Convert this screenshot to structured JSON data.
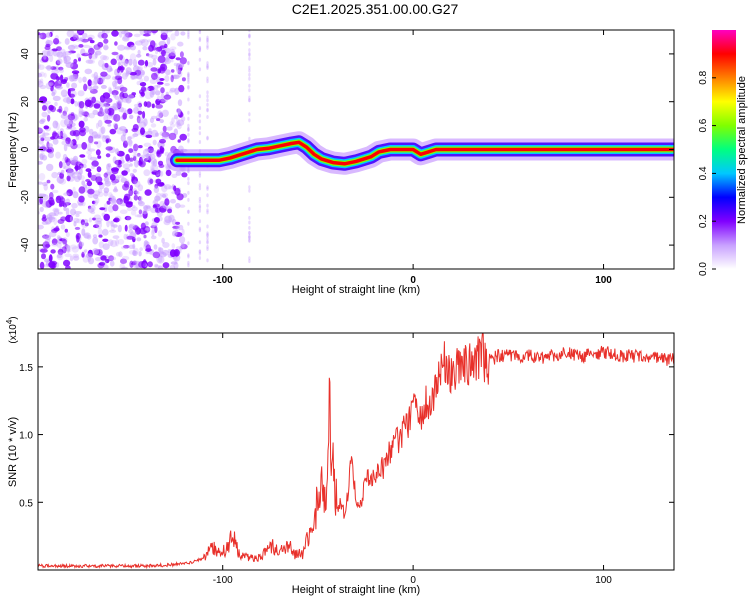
{
  "figure": {
    "title": "C2E1.2025.351.00.00.G27"
  },
  "chart_data": [
    {
      "type": "heatmap",
      "xlabel": "Height of straight line (km)",
      "ylabel": "Frequency (Hz)",
      "xlim": [
        -197,
        137
      ],
      "ylim": [
        -50,
        50
      ],
      "x_ticks": [
        -100,
        0,
        100
      ],
      "y_ticks": [
        -40,
        -20,
        0,
        20,
        40
      ],
      "grid": false,
      "colorbar": {
        "label": "Normalized spectral amplitude",
        "range": [
          0.0,
          1.0
        ],
        "ticks": [
          "0.0",
          "0.2",
          "0.4",
          "0.6",
          "0.8"
        ],
        "tick_values": [
          0.0,
          0.2,
          0.4,
          0.6,
          0.8
        ],
        "colors": [
          "#ffffff",
          "#c8a0ff",
          "#8000ff",
          "#0000ff",
          "#00c8ff",
          "#00ff80",
          "#80ff00",
          "#ffff00",
          "#ff8000",
          "#ff0000",
          "#ff00c0"
        ]
      },
      "ridge": {
        "x": [
          -124,
          -118,
          -110,
          -102,
          -96,
          -90,
          -82,
          -76,
          -70,
          -64,
          -60,
          -56,
          -52,
          -48,
          -42,
          -36,
          -30,
          -26,
          -22,
          -18,
          -12,
          -6,
          0,
          4,
          8,
          12,
          20,
          40,
          60,
          80,
          100,
          120,
          137
        ],
        "y": [
          -4.5,
          -4.5,
          -4.5,
          -4.5,
          -3.5,
          -2,
          0,
          0.5,
          1.5,
          2.5,
          3,
          1,
          -2,
          -4,
          -5.5,
          -6,
          -5,
          -4,
          -3,
          -1,
          0,
          0,
          0,
          -2,
          -1,
          0,
          0,
          0,
          0,
          0,
          0,
          0,
          0
        ],
        "value": 1.0,
        "noise_x_range": [
          -197,
          -120
        ],
        "noise_description_colors": [
          "#8000ff",
          "#c8a0ff"
        ]
      }
    },
    {
      "type": "line",
      "xlabel": "Height of straight line (km)",
      "ylabel": "SNR (10 * v/v)",
      "y_multiplier": "(x10",
      "y_multiplier_exp": "4",
      "y_multiplier_close": ")",
      "xlim": [
        -197,
        137
      ],
      "ylim": [
        0,
        17500
      ],
      "x_ticks": [
        -100,
        0,
        100
      ],
      "y_ticks": [
        5000,
        10000,
        15000
      ],
      "y_tick_labels": [
        "0.5",
        "1.0",
        "1.5"
      ],
      "grid": false,
      "series": [
        {
          "color": "#e8302a",
          "x": [
            -197,
            -180,
            -160,
            -140,
            -125,
            -115,
            -110,
            -106,
            -102,
            -98,
            -95,
            -92,
            -90,
            -86,
            -82,
            -78,
            -74,
            -70,
            -66,
            -62,
            -58,
            -55,
            -52,
            -50,
            -48,
            -46,
            -44,
            -42,
            -40,
            -38,
            -36,
            -34,
            -32,
            -30,
            -28,
            -26,
            -24,
            -20,
            -16,
            -12,
            -8,
            -4,
            0,
            4,
            8,
            12,
            16,
            20,
            25,
            30,
            35,
            40,
            45,
            50,
            60,
            70,
            80,
            90,
            100,
            110,
            120,
            130,
            137
          ],
          "y": [
            300,
            300,
            300,
            300,
            400,
            600,
            900,
            1800,
            1200,
            1500,
            2600,
            1400,
            1000,
            900,
            900,
            1200,
            1800,
            1300,
            1900,
            1200,
            1200,
            2400,
            4000,
            5000,
            6500,
            4800,
            12000,
            8000,
            4500,
            5200,
            4000,
            6000,
            8500,
            5000,
            4500,
            6000,
            7000,
            6800,
            7500,
            8800,
            9500,
            10500,
            12000,
            11500,
            12500,
            13500,
            15500,
            14500,
            15000,
            15500,
            16000,
            15500,
            15800,
            15800,
            15800,
            15700,
            16000,
            15800,
            16100,
            15800,
            15800,
            15600,
            15500
          ]
        }
      ]
    }
  ]
}
